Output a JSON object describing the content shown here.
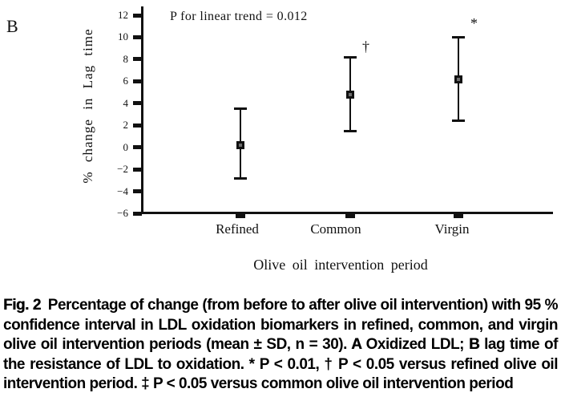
{
  "panel_label": "B",
  "chart_data": {
    "type": "errorbar",
    "title": "",
    "annotation": "P for linear trend = 0.012",
    "xlabel": "Olive oil intervention period",
    "ylabel": "% change in Lag time",
    "categories": [
      "Refined",
      "Common",
      "Virgin"
    ],
    "means": [
      0.2,
      4.8,
      6.2
    ],
    "ci_upper": [
      3.5,
      8.2,
      10.0
    ],
    "ci_lower": [
      -2.8,
      1.5,
      2.4
    ],
    "significance": [
      "",
      "†",
      "*"
    ],
    "ylim": [
      -6,
      12
    ],
    "yticks": [
      12,
      10,
      8,
      6,
      4,
      2,
      0,
      -2,
      -4,
      -6
    ],
    "grid": false,
    "legend": "none",
    "marker_color": "#111111"
  },
  "caption": {
    "fig_label": "Fig. 2",
    "text_1": "Percentage of change (from before to after olive oil intervention) with 95 % confidence interval in LDL oxidation biomarkers in refined, common, and virgin olive oil intervention periods (mean ± SD, n = 30). ",
    "a_label": "A",
    "text_2": " Oxidized LDL; ",
    "b_label": "B",
    "text_3": " lag time of the resistance of LDL to oxidation. * P < 0.01, † P < 0.05 versus refined olive oil intervention period. ‡ P < 0.05 versus common olive oil intervention period"
  }
}
